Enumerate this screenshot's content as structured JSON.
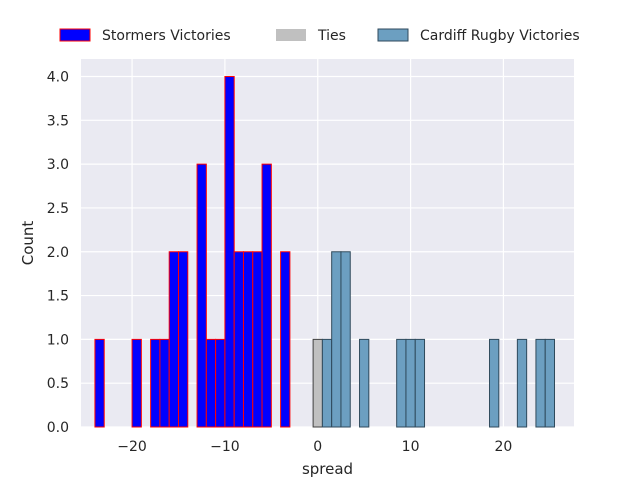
{
  "chart_data": {
    "type": "bar",
    "title": "",
    "xlabel": "spread",
    "ylabel": "Count",
    "xlim": [
      -25.5,
      27.6
    ],
    "ylim": [
      0,
      4.2
    ],
    "xticks": [
      -20,
      -10,
      0,
      10,
      20
    ],
    "xtick_labels": [
      "−20",
      "−10",
      "0",
      "10",
      "20"
    ],
    "yticks": [
      0,
      0.5,
      1.0,
      1.5,
      2.0,
      2.5,
      3.0,
      3.5,
      4.0
    ],
    "ytick_labels": [
      "0.0",
      "0.5",
      "1.0",
      "1.5",
      "2.0",
      "2.5",
      "3.0",
      "3.5",
      "4.0"
    ],
    "grid": true,
    "legend_placement": "top-center",
    "bin_width": 1,
    "series": [
      {
        "name": "Stormers Victories",
        "fill": "#0000ff",
        "edge": "#ff0000",
        "bins": [
          {
            "x": -24,
            "count": 1
          },
          {
            "x": -20,
            "count": 1
          },
          {
            "x": -18,
            "count": 1
          },
          {
            "x": -17,
            "count": 1
          },
          {
            "x": -16,
            "count": 2
          },
          {
            "x": -15,
            "count": 2
          },
          {
            "x": -13,
            "count": 3
          },
          {
            "x": -12,
            "count": 1
          },
          {
            "x": -11,
            "count": 1
          },
          {
            "x": -10,
            "count": 4
          },
          {
            "x": -9,
            "count": 2
          },
          {
            "x": -8,
            "count": 2
          },
          {
            "x": -7,
            "count": 2
          },
          {
            "x": -6,
            "count": 3
          },
          {
            "x": -4,
            "count": 2
          }
        ]
      },
      {
        "name": "Ties",
        "fill": "#c0c0c0",
        "edge": "#404040",
        "bins": [
          {
            "x": -0.5,
            "count": 1
          }
        ]
      },
      {
        "name": "Cardiff Rugby Victories",
        "fill": "#6c9fc1",
        "edge": "#2f4a5c",
        "bins": [
          {
            "x": 0.5,
            "count": 1
          },
          {
            "x": 1.5,
            "count": 2
          },
          {
            "x": 2.5,
            "count": 2
          },
          {
            "x": 4.5,
            "count": 1
          },
          {
            "x": 8.5,
            "count": 1
          },
          {
            "x": 9.5,
            "count": 1
          },
          {
            "x": 10.5,
            "count": 1
          },
          {
            "x": 18.5,
            "count": 1
          },
          {
            "x": 21.5,
            "count": 1
          },
          {
            "x": 23.5,
            "count": 1
          },
          {
            "x": 24.5,
            "count": 1
          }
        ]
      }
    ]
  }
}
